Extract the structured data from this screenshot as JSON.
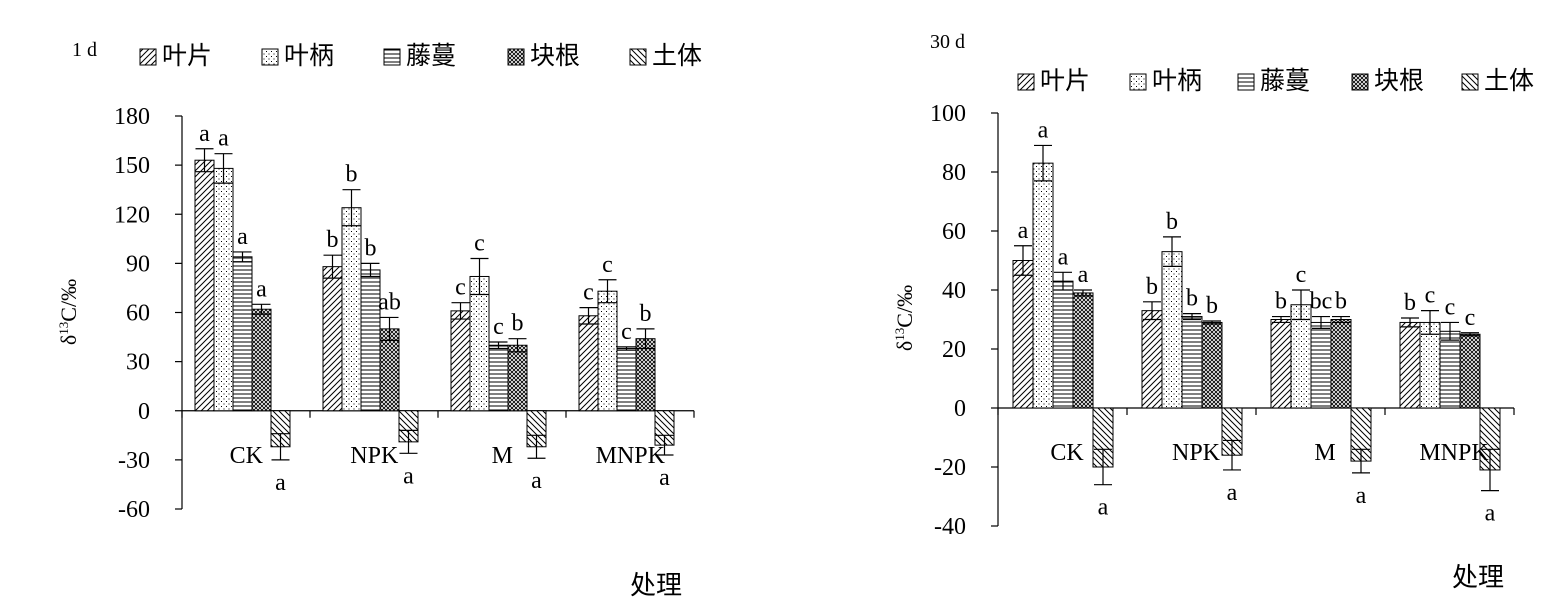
{
  "figure": {
    "xlabel": "处理",
    "ylabel_main": "δ",
    "ylabel_sup": "13",
    "ylabel_rest": "C/‰"
  },
  "chart_data": [
    {
      "type": "bar",
      "title": "1 d",
      "xlabel": "处理",
      "ylabel": "δ13C/‰",
      "categories": [
        "CK",
        "NPK",
        "M",
        "MNPK"
      ],
      "ylim": [
        -60,
        180
      ],
      "yticks": [
        -60,
        -30,
        0,
        30,
        60,
        90,
        120,
        150,
        180
      ],
      "legend_position": "top",
      "grid": false,
      "series": [
        {
          "name": "叶片",
          "values": [
            153,
            88,
            61,
            58
          ],
          "errors": [
            7,
            7,
            5,
            5
          ],
          "letters": [
            "a",
            "b",
            "c",
            "c"
          ]
        },
        {
          "name": "叶柄",
          "values": [
            148,
            124,
            82,
            73
          ],
          "errors": [
            9,
            11,
            11,
            7
          ],
          "letters": [
            "a",
            "b",
            "c",
            "c"
          ]
        },
        {
          "name": "藤蔓",
          "values": [
            94,
            86,
            40,
            38
          ],
          "errors": [
            3,
            4,
            2,
            1
          ],
          "letters": [
            "a",
            "b",
            "c",
            "c"
          ]
        },
        {
          "name": "块根",
          "values": [
            62,
            50,
            40,
            44
          ],
          "errors": [
            3,
            7,
            4,
            6
          ],
          "letters": [
            "a",
            "ab",
            "b",
            "b"
          ]
        },
        {
          "name": "土体",
          "values": [
            -22,
            -19,
            -22,
            -21
          ],
          "errors": [
            8,
            7,
            7,
            6
          ],
          "letters": [
            "a",
            "a",
            "a",
            "a"
          ]
        }
      ]
    },
    {
      "type": "bar",
      "title": "30 d",
      "xlabel": "处理",
      "ylabel": "δ13C/‰",
      "categories": [
        "CK",
        "NPK",
        "M",
        "MNPK"
      ],
      "ylim": [
        -40,
        100
      ],
      "yticks": [
        -40,
        -20,
        0,
        20,
        40,
        60,
        80,
        100
      ],
      "legend_position": "top",
      "grid": false,
      "series": [
        {
          "name": "叶片",
          "values": [
            50,
            33,
            30,
            29
          ],
          "errors": [
            5,
            3,
            1,
            1.5
          ],
          "letters": [
            "a",
            "b",
            "b",
            "b"
          ]
        },
        {
          "name": "叶柄",
          "values": [
            83,
            53,
            35,
            29
          ],
          "errors": [
            6,
            5,
            5,
            4
          ],
          "letters": [
            "a",
            "b",
            "c",
            "c"
          ]
        },
        {
          "name": "藤蔓",
          "values": [
            43,
            31,
            29,
            26
          ],
          "errors": [
            3,
            1,
            2,
            3
          ],
          "letters": [
            "a",
            "b",
            "bc",
            "c"
          ]
        },
        {
          "name": "块根",
          "values": [
            39,
            29,
            30,
            25
          ],
          "errors": [
            1,
            0.5,
            1,
            0.5
          ],
          "letters": [
            "a",
            "b",
            "b",
            "c"
          ]
        },
        {
          "name": "土体",
          "values": [
            -20,
            -16,
            -18,
            -21
          ],
          "errors": [
            6,
            5,
            4,
            7
          ],
          "letters": [
            "a",
            "a",
            "a",
            "a"
          ]
        }
      ]
    }
  ]
}
